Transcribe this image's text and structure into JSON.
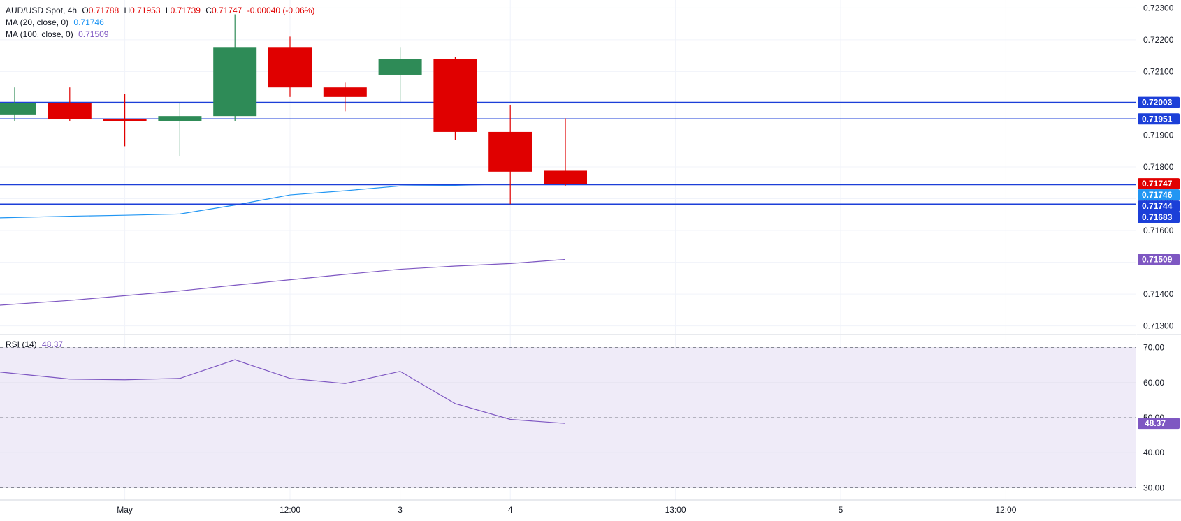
{
  "legend": {
    "symbol": "AUD/USD Spot, 4h",
    "ohlc": {
      "o_label": "O",
      "o": "0.71788",
      "h_label": "H",
      "h": "0.71953",
      "l_label": "L",
      "l": "0.71739",
      "c_label": "C",
      "c": "0.71747",
      "change": "-0.00040 (-0.06%)"
    },
    "ma20": {
      "label": "MA (20, close, 0)",
      "value": "0.71746"
    },
    "ma100": {
      "label": "MA (100, close, 0)",
      "value": "0.71509"
    },
    "rsi": {
      "label": "RSI (14)",
      "value": "48.37"
    }
  },
  "colors": {
    "up": "#2e8b57",
    "down": "#e00000",
    "ma20": "#2196f3",
    "ma100": "#7e57c2",
    "hline": "#1c3fd8",
    "rsi": "#7e57c2",
    "rsi_band": "#efebf8",
    "grid": "#f0f3fa"
  },
  "chart_data": [
    {
      "type": "candlestick",
      "title": "AUD/USD Spot, 4h",
      "x_tick_labels": [
        "May",
        "12:00",
        "3",
        "4",
        "13:00",
        "5",
        "12:00"
      ],
      "x_tick_index": [
        2,
        5,
        7,
        9,
        12,
        15,
        18
      ],
      "y_ticks": [
        "0.72300",
        "0.72200",
        "0.72100",
        "0.72000",
        "0.71900",
        "0.71800",
        "0.71700",
        "0.71600",
        "0.71500",
        "0.71400",
        "0.71300"
      ],
      "ylim": [
        0.71275,
        0.72325
      ],
      "candles": [
        {
          "o": 0.71965,
          "h": 0.7205,
          "l": 0.71945,
          "c": 0.72
        },
        {
          "o": 0.72,
          "h": 0.7205,
          "l": 0.71945,
          "c": 0.7195
        },
        {
          "o": 0.7195,
          "h": 0.7203,
          "l": 0.71865,
          "c": 0.71945
        },
        {
          "o": 0.71945,
          "h": 0.72,
          "l": 0.71835,
          "c": 0.7196
        },
        {
          "o": 0.7196,
          "h": 0.7228,
          "l": 0.71945,
          "c": 0.72175
        },
        {
          "o": 0.72175,
          "h": 0.7221,
          "l": 0.7202,
          "c": 0.7205
        },
        {
          "o": 0.7205,
          "h": 0.72065,
          "l": 0.71975,
          "c": 0.7202
        },
        {
          "o": 0.7209,
          "h": 0.72175,
          "l": 0.72005,
          "c": 0.7214
        },
        {
          "o": 0.7214,
          "h": 0.72145,
          "l": 0.71885,
          "c": 0.7191
        },
        {
          "o": 0.7191,
          "h": 0.71995,
          "l": 0.71683,
          "c": 0.71785
        },
        {
          "o": 0.71788,
          "h": 0.71953,
          "l": 0.71739,
          "c": 0.71747
        }
      ],
      "ma20": [
        0.7164,
        0.71645,
        0.71648,
        0.71652,
        0.7168,
        0.71712,
        0.71725,
        0.7174,
        0.71742,
        0.71746,
        null
      ],
      "ma100": [
        0.71365,
        0.7138,
        0.71395,
        0.7141,
        0.71428,
        0.71445,
        0.71462,
        0.71478,
        0.71488,
        0.71496,
        0.71509
      ],
      "hlines": [
        0.72003,
        0.71951,
        0.71744,
        0.71683
      ],
      "price_labels": [
        {
          "text": "0.72003",
          "value": 0.72003,
          "color": "#1c3fd8"
        },
        {
          "text": "0.71951",
          "value": 0.71951,
          "color": "#1c3fd8"
        },
        {
          "text": "0.71747",
          "value": 0.71747,
          "color": "#e00000"
        },
        {
          "text": "0.71746",
          "value": 0.71746,
          "color": "#2196f3"
        },
        {
          "text": "0.71744",
          "value": 0.71744,
          "color": "#1c3fd8"
        },
        {
          "text": "0.71683",
          "value": 0.71683,
          "color": "#1c3fd8"
        },
        {
          "text": "0.71509",
          "value": 0.71509,
          "color": "#7e57c2"
        }
      ]
    },
    {
      "type": "line",
      "title": "RSI (14)",
      "y_ticks": [
        "70.00",
        "60.00",
        "50.00",
        "40.00",
        "30.00"
      ],
      "ylim": [
        26.5,
        73.5
      ],
      "levels": [
        70,
        50,
        30
      ],
      "values": [
        63,
        61,
        60.8,
        61.2,
        66.5,
        61.2,
        59.7,
        63.2,
        54.0,
        49.5,
        48.37
      ],
      "last_label": "48.37"
    }
  ]
}
